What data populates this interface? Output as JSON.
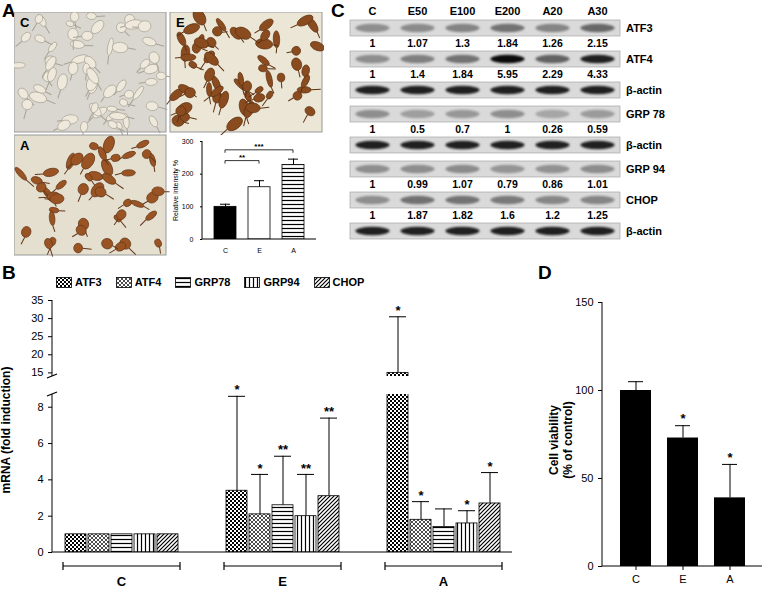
{
  "chart_data": [
    {
      "type": "bar",
      "categories": [
        "C",
        "E",
        "A"
      ],
      "values": [
        100,
        160,
        228
      ],
      "errors": [
        8,
        20,
        18
      ],
      "colors": [
        "#000000",
        "#ffffff",
        "#ffffff"
      ],
      "y_label": "Relative intensity %",
      "ylim": [
        0,
        300
      ],
      "yticks": [
        0,
        100,
        200,
        300
      ],
      "significance": [
        {
          "from": "C",
          "to": "E",
          "label": "**"
        },
        {
          "from": "C",
          "to": "A",
          "label": "***"
        }
      ]
    },
    {
      "panel": "B",
      "type": "bar",
      "y_label": "mRNA (fold induction)",
      "categories": [
        "C",
        "E",
        "A"
      ],
      "series": [
        {
          "name": "ATF3",
          "color": "#000000",
          "values": [
            1,
            3.4,
            15
          ],
          "errors": [
            null,
            5.2,
            15.5
          ],
          "significance": [
            null,
            "*",
            "*"
          ]
        },
        {
          "name": "ATF4",
          "color": "#000000",
          "values": [
            1,
            2.1,
            1.8
          ],
          "errors": [
            null,
            2.2,
            1.0
          ],
          "significance": [
            null,
            "*",
            "*"
          ]
        },
        {
          "name": "GRP78",
          "color": "#000000",
          "values": [
            1,
            2.6,
            1.4
          ],
          "errors": [
            null,
            2.7,
            1.0
          ],
          "significance": [
            null,
            "**",
            null
          ]
        },
        {
          "name": "GRP94",
          "color": "#000000",
          "values": [
            1,
            2.0,
            1.6
          ],
          "errors": [
            null,
            2.3,
            0.7
          ],
          "significance": [
            null,
            "**",
            "*"
          ]
        },
        {
          "name": "CHOP",
          "color": "#000000",
          "values": [
            1,
            3.1,
            2.7
          ],
          "errors": [
            null,
            4.3,
            1.7
          ],
          "significance": [
            null,
            "**",
            "*"
          ]
        }
      ],
      "ylim": [
        0,
        35
      ],
      "yticks": [
        0,
        2,
        4,
        6,
        8,
        15,
        20,
        25,
        30,
        35
      ],
      "y_break": [
        8.7,
        14
      ],
      "legend": "top"
    },
    {
      "panel": "D",
      "type": "bar",
      "categories": [
        "C",
        "E",
        "A"
      ],
      "values": [
        100,
        73,
        39
      ],
      "errors": [
        5,
        7,
        19
      ],
      "significance": [
        null,
        "*",
        "*"
      ],
      "color": "#000000",
      "y_label": "Cell viability\n(% of control)",
      "ylim": [
        0,
        150
      ],
      "yticks": [
        0,
        50,
        100,
        150
      ]
    }
  ],
  "micrographs": {
    "panel": "A",
    "labels": [
      "C",
      "E",
      "A"
    ]
  },
  "western_blot": {
    "panel": "C",
    "lanes": [
      "C",
      "E50",
      "E100",
      "E200",
      "A20",
      "A30"
    ],
    "rows": [
      {
        "protein": "ATF3",
        "values": [
          1,
          1.07,
          1.3,
          1.84,
          1.26,
          2.15
        ]
      },
      {
        "protein": "ATF4",
        "values": [
          1,
          1.4,
          1.84,
          5.95,
          2.29,
          4.33
        ]
      },
      {
        "protein": "β-actin"
      },
      {
        "protein": "GRP 78",
        "values": [
          1,
          0.5,
          0.7,
          1,
          0.26,
          0.59
        ]
      },
      {
        "protein": "β-actin"
      },
      {
        "protein": "GRP 94",
        "values": [
          1,
          0.99,
          1.07,
          0.79,
          0.86,
          1.01
        ]
      },
      {
        "protein": "CHOP",
        "values": [
          1,
          1.87,
          1.82,
          1.6,
          1.2,
          1.25
        ]
      },
      {
        "protein": "β-actin"
      }
    ]
  }
}
